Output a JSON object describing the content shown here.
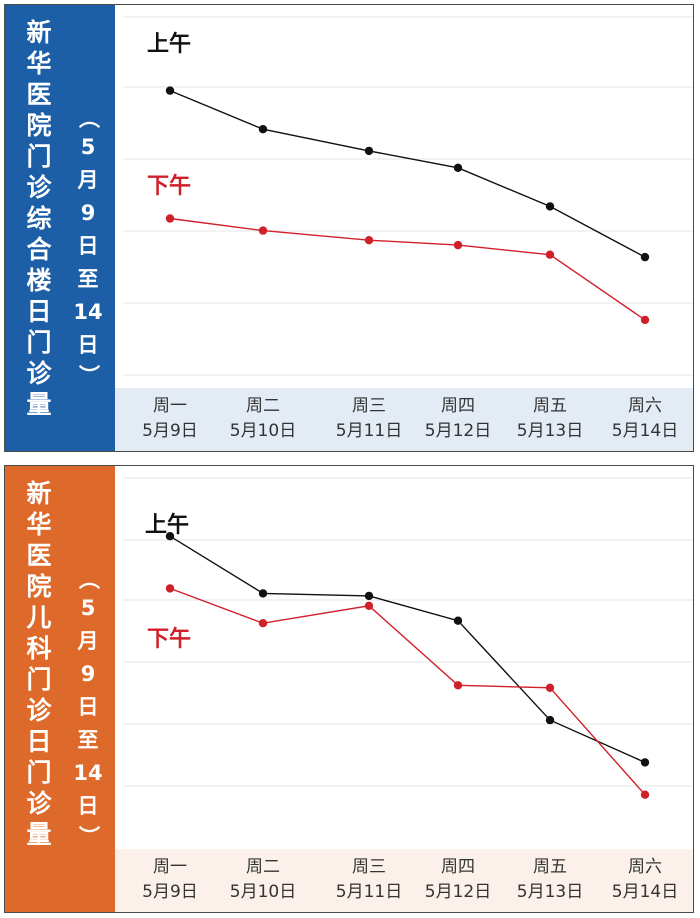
{
  "chart_data": [
    {
      "type": "line",
      "title_chars": [
        "新",
        "华",
        "医",
        "院",
        "门",
        "诊",
        "综",
        "合",
        "楼",
        "日",
        "门",
        "诊",
        "量"
      ],
      "date_range_chars": [
        "（",
        "5",
        "月",
        "9",
        "日",
        "至",
        "14",
        "日",
        "）"
      ],
      "categories": [
        {
          "weekday": "周一",
          "date": "5月9日"
        },
        {
          "weekday": "周二",
          "date": "5月10日"
        },
        {
          "weekday": "周三",
          "date": "5月11日"
        },
        {
          "weekday": "周四",
          "date": "5月12日"
        },
        {
          "weekday": "周五",
          "date": "5月13日"
        },
        {
          "weekday": "周六",
          "date": "5月14日"
        }
      ],
      "series": [
        {
          "name": "上午",
          "color": "#111111",
          "values": [
            87,
            71,
            62,
            55,
            39,
            18
          ]
        },
        {
          "name": "下午",
          "color": "#d0202a",
          "values": [
            34,
            29,
            25,
            23,
            19,
            -8
          ]
        }
      ],
      "ylim": [
        -30,
        115
      ],
      "grid": true,
      "accent": "#1c5fa6"
    },
    {
      "type": "line",
      "title_chars": [
        "新",
        "华",
        "医",
        "院",
        "儿",
        "科",
        "门",
        "诊",
        "日",
        "门",
        "诊",
        "量"
      ],
      "date_range_chars": [
        "（",
        "5",
        "月",
        "9",
        "日",
        "至",
        "14",
        "日",
        "）"
      ],
      "categories": [
        {
          "weekday": "周一",
          "date": "5月9日"
        },
        {
          "weekday": "周二",
          "date": "5月10日"
        },
        {
          "weekday": "周三",
          "date": "5月11日"
        },
        {
          "weekday": "周四",
          "date": "5月12日"
        },
        {
          "weekday": "周五",
          "date": "5月13日"
        },
        {
          "weekday": "周六",
          "date": "5月14日"
        }
      ],
      "series": [
        {
          "name": "上午",
          "color": "#111111",
          "values": [
            84,
            61,
            60,
            50,
            10,
            -7
          ]
        },
        {
          "name": "下午",
          "color": "#d0202a",
          "values": [
            63,
            49,
            56,
            24,
            23,
            -20
          ]
        }
      ],
      "ylim": [
        -35,
        105
      ],
      "grid": true,
      "accent": "#dd6a2b"
    }
  ]
}
